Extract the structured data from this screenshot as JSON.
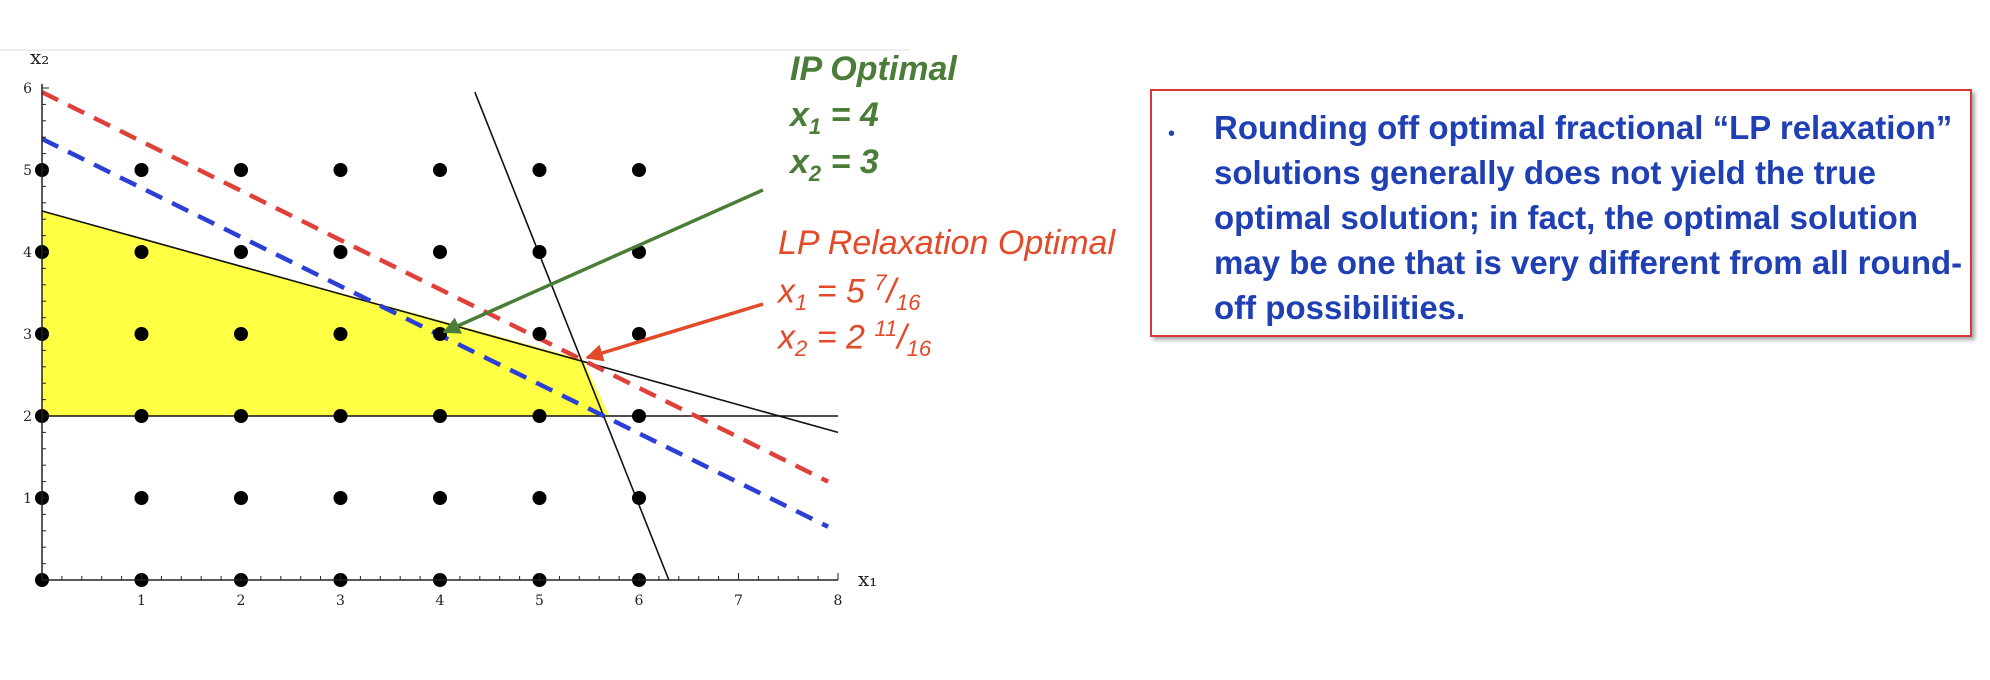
{
  "chart_data": {
    "type": "scatter",
    "title": "",
    "xlabel": "x₁",
    "ylabel": "x₂",
    "xlim": [
      0,
      8
    ],
    "ylim": [
      0,
      6
    ],
    "x_ticks": [
      "1",
      "2",
      "3",
      "4",
      "5",
      "6",
      "7",
      "8"
    ],
    "y_ticks": [
      "1",
      "2",
      "3",
      "4",
      "5",
      "6"
    ],
    "integer_points": [
      [
        0,
        0
      ],
      [
        1,
        0
      ],
      [
        2,
        0
      ],
      [
        3,
        0
      ],
      [
        4,
        0
      ],
      [
        5,
        0
      ],
      [
        6,
        0
      ],
      [
        0,
        1
      ],
      [
        1,
        1
      ],
      [
        2,
        1
      ],
      [
        3,
        1
      ],
      [
        4,
        1
      ],
      [
        5,
        1
      ],
      [
        6,
        1
      ],
      [
        0,
        2
      ],
      [
        1,
        2
      ],
      [
        2,
        2
      ],
      [
        3,
        2
      ],
      [
        4,
        2
      ],
      [
        5,
        2
      ],
      [
        6,
        2
      ],
      [
        0,
        3
      ],
      [
        1,
        3
      ],
      [
        2,
        3
      ],
      [
        3,
        3
      ],
      [
        4,
        3
      ],
      [
        5,
        3
      ],
      [
        6,
        3
      ],
      [
        0,
        4
      ],
      [
        1,
        4
      ],
      [
        2,
        4
      ],
      [
        3,
        4
      ],
      [
        4,
        4
      ],
      [
        5,
        4
      ],
      [
        6,
        4
      ],
      [
        0,
        5
      ],
      [
        1,
        5
      ],
      [
        2,
        5
      ],
      [
        3,
        5
      ],
      [
        4,
        5
      ],
      [
        5,
        5
      ],
      [
        6,
        5
      ]
    ],
    "feasible_region": [
      [
        0,
        2
      ],
      [
        0,
        4.5
      ],
      [
        5.4375,
        2.6875
      ],
      [
        5.7,
        2
      ]
    ],
    "constraint_lines": [
      {
        "from": [
          0,
          4.5
        ],
        "to": [
          8,
          1.8
        ]
      },
      {
        "from": [
          0,
          2
        ],
        "to": [
          8,
          2
        ]
      },
      {
        "from": [
          4.35,
          5.95
        ],
        "to": [
          6.3,
          0
        ]
      }
    ],
    "objective_lines": [
      {
        "color": "#e0403a",
        "from": [
          0,
          5.95
        ],
        "to": [
          7.9,
          1.2
        ]
      },
      {
        "color": "#2b3fd6",
        "from": [
          0,
          5.38
        ],
        "to": [
          7.9,
          0.65
        ]
      }
    ],
    "lp_optimum": [
      5.4375,
      2.6875
    ],
    "ip_optimum": [
      4,
      3
    ]
  },
  "annotations": {
    "ip_title": "IP Optimal",
    "ip_x1_prefix": "x",
    "ip_x1_sub": "1",
    "ip_x1_val": " = 4",
    "ip_x2_prefix": "x",
    "ip_x2_sub": "2",
    "ip_x2_val": " = 3",
    "lp_title": "LP Relaxation Optimal",
    "lp_x1_prefix": "x",
    "lp_x1_sub": "1",
    "lp_x1_val": " = 5 ",
    "lp_x1_num": "7",
    "lp_x1_den": "16",
    "lp_x2_prefix": "x",
    "lp_x2_sub": "2",
    "lp_x2_val": " = 2 ",
    "lp_x2_num": "11",
    "lp_x2_den": "16",
    "ip_color": "#4a7d37",
    "lp_color": "#e24a2a"
  },
  "note": {
    "bullet": "•",
    "text": "Rounding off optimal fractional “LP relaxation” solutions generally does not yield the true optimal solution; in fact, the optimal solution may be one that is very different from all round-off possibilities."
  }
}
